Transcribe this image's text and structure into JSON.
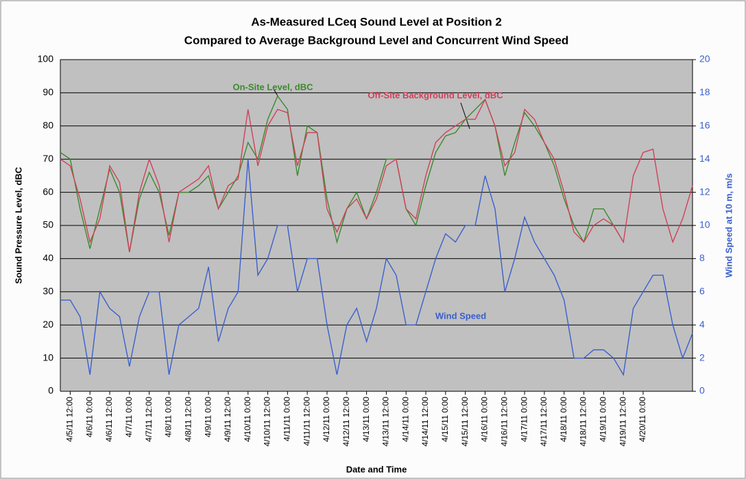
{
  "chart_data": {
    "type": "line",
    "title": "As-Measured LCeq Sound Level at Position 2",
    "subtitle": "Compared to Average Background Level and Concurrent Wind Speed",
    "x_label": "Date and Time",
    "y_label": "Sound Pressure Level, dBC",
    "y2_label": "Wind Speed at 10 m, m/s",
    "categories": [
      null,
      "4/5/11 12:00",
      null,
      "4/6/11 0:00",
      null,
      "4/6/11 12:00",
      null,
      "4/7/11 0:00",
      null,
      "4/7/11 12:00",
      null,
      "4/8/11 0:00",
      null,
      "4/8/11 12:00",
      null,
      "4/9/11 0:00",
      null,
      "4/9/11 12:00",
      null,
      "4/10/11 0:00",
      null,
      "4/10/11 12:00",
      null,
      "4/11/11 0:00",
      null,
      "4/11/11 12:00",
      null,
      "4/12/11 0:00",
      null,
      "4/12/11 12:00",
      null,
      "4/13/11 0:00",
      null,
      "4/13/11 12:00",
      null,
      "4/14/11 0:00",
      null,
      "4/14/11 12:00",
      null,
      "4/15/11 0:00",
      null,
      "4/15/11 12:00",
      null,
      "4/16/11 0:00",
      null,
      "4/16/11 12:00",
      null,
      "4/17/11 0:00",
      null,
      "4/17/11 12:00",
      null,
      "4/18/11 0:00",
      null,
      "4/18/11 12:00",
      null,
      "4/19/11 0:00",
      null,
      "4/19/11 12:00",
      null,
      "4/20/11 0:00",
      null,
      null,
      null,
      null,
      null
    ],
    "series": [
      {
        "name": "On-Site Level, dBC",
        "color": "#3a8a2a",
        "values": [
          72,
          70,
          55,
          43,
          55,
          67,
          60,
          42,
          58,
          66,
          60,
          47,
          60,
          60,
          62,
          65,
          55,
          60,
          65,
          75,
          70,
          82,
          89,
          85,
          65,
          80,
          78,
          58,
          45,
          55,
          60,
          52,
          60,
          70,
          70,
          55,
          50,
          62,
          72,
          77,
          78,
          82,
          85,
          88,
          80,
          65,
          75,
          84,
          80,
          75,
          68,
          58,
          50,
          45,
          55,
          55,
          50,
          45,
          null,
          null,
          null,
          null,
          null,
          null,
          null
        ]
      },
      {
        "name": "Off-Site Background Level, dBC",
        "color": "#d0405a",
        "values": [
          70,
          68,
          58,
          45,
          52,
          68,
          63,
          42,
          60,
          70,
          62,
          45,
          60,
          62,
          64,
          68,
          55,
          62,
          64,
          85,
          68,
          80,
          85,
          84,
          68,
          78,
          78,
          55,
          48,
          55,
          58,
          52,
          58,
          68,
          70,
          55,
          52,
          65,
          75,
          78,
          80,
          82,
          82,
          88,
          80,
          68,
          72,
          85,
          82,
          75,
          70,
          60,
          48,
          45,
          50,
          52,
          50,
          45,
          65,
          72,
          73,
          55,
          45,
          52,
          62
        ]
      },
      {
        "name": "Wind Speed",
        "color": "#3a5fcd",
        "axis": "y2",
        "values": [
          5.5,
          5.5,
          4.5,
          1,
          6,
          5,
          4.5,
          1.5,
          4.5,
          6,
          6,
          1,
          4,
          4.5,
          5,
          7.5,
          3,
          5,
          6,
          14,
          7,
          8,
          10,
          10,
          6,
          8,
          8,
          4,
          1,
          4,
          5,
          3,
          5,
          8,
          7,
          4,
          4,
          6,
          8,
          9.5,
          9,
          10,
          10,
          13,
          11,
          6,
          8,
          10.5,
          9,
          8,
          7,
          5.5,
          2,
          2,
          2.5,
          2.5,
          2,
          1,
          5,
          6,
          7,
          7,
          4,
          2,
          3.5
        ]
      }
    ],
    "ylim": [
      0,
      100
    ],
    "yticks": [
      0,
      10,
      20,
      30,
      40,
      50,
      60,
      70,
      80,
      90,
      100
    ],
    "y2lim": [
      0,
      20
    ],
    "y2ticks": [
      0,
      2,
      4,
      6,
      8,
      10,
      12,
      14,
      16,
      18,
      20
    ],
    "grid": true
  }
}
